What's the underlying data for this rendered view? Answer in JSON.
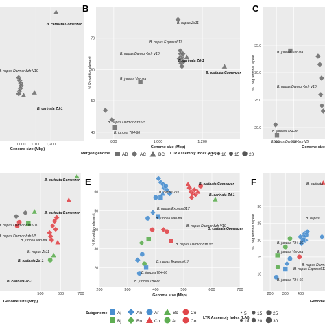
{
  "figure": {
    "legend_top": {
      "merged_title": "Merged genome",
      "merged_items": [
        "AB",
        "AC",
        "BC"
      ],
      "lai_title": "LTR Assembly Index (LAI)",
      "lai_items": [
        "5",
        "10",
        "15",
        "20"
      ]
    },
    "legend_bottom": {
      "subgenome_title": "Subgenome",
      "subgenome_items": [
        "Aj",
        "An",
        "Ar",
        "Bc",
        "Co",
        "Bj",
        "Bn",
        "Cn",
        "Ar",
        "Co"
      ],
      "lai_title": "LTR Assembly Index (LAI)",
      "lai_items": [
        "5",
        "10",
        "15",
        "20",
        "25",
        "30"
      ]
    },
    "colors": {
      "panel_bg": "#ebebeb",
      "grid": "#ffffff",
      "blue": "#4a8fcf",
      "green": "#5fae53",
      "red": "#e0464a",
      "grey": "#707070"
    }
  },
  "chart_data": [
    {
      "panel": "A",
      "type": "scatter",
      "xlabel": "Genome size (Mbp)",
      "ylabel": "",
      "xlim": [
        860,
        1420
      ],
      "ylim": [
        0,
        100
      ],
      "xticks": [
        "1,000",
        "1,100",
        "1,200"
      ],
      "xtick_values": [
        1000,
        1100,
        1200
      ],
      "labels": [
        "B. carinata Gomenzer",
        "B. napus Darmor-bzh V10",
        "B. carinata Zd-1"
      ],
      "points": [
        {
          "x": 1235,
          "y": 96,
          "shape": "triangle"
        },
        {
          "x": 985,
          "y": 47,
          "shape": "diamond"
        },
        {
          "x": 992,
          "y": 45,
          "shape": "diamond"
        },
        {
          "x": 998,
          "y": 43,
          "shape": "diamond"
        },
        {
          "x": 1002,
          "y": 41,
          "shape": "diamond"
        },
        {
          "x": 996,
          "y": 39,
          "shape": "diamond"
        },
        {
          "x": 990,
          "y": 37,
          "shape": "diamond"
        },
        {
          "x": 985,
          "y": 35,
          "shape": "diamond"
        },
        {
          "x": 1018,
          "y": 34,
          "shape": "triangle"
        },
        {
          "x": 1090,
          "y": 36,
          "shape": "triangle"
        }
      ]
    },
    {
      "panel": "B",
      "type": "scatter",
      "xlabel": "Genome size (Mbp)",
      "ylabel": "% Repetitive element",
      "xlim": [
        720,
        1370
      ],
      "ylim": [
        38,
        80
      ],
      "xticks": [
        "800",
        "1,000",
        "1,200"
      ],
      "xtick_values": [
        800,
        1000,
        1200
      ],
      "yticks": [
        "40",
        "50",
        "60",
        "70"
      ],
      "ytick_values": [
        40,
        50,
        60,
        70
      ],
      "labels": [
        "B. napus Zs11",
        "B. napus Express617",
        "B. napus Darmor-bzh V10",
        "B. carinata Zd-1",
        "B. carinata Gomenzer",
        "B. juncea Varuna",
        "B. napus Darmor-bzh V5",
        "B. juncea T84-66"
      ],
      "points": [
        {
          "x": 1300,
          "y": 61,
          "shape": "triangle"
        },
        {
          "x": 1090,
          "y": 76,
          "shape": "diamond"
        },
        {
          "x": 1100,
          "y": 66,
          "shape": "diamond"
        },
        {
          "x": 1102,
          "y": 65,
          "shape": "diamond"
        },
        {
          "x": 1106,
          "y": 64,
          "shape": "diamond"
        },
        {
          "x": 1110,
          "y": 63,
          "shape": "diamond"
        },
        {
          "x": 1104,
          "y": 62,
          "shape": "diamond"
        },
        {
          "x": 1096,
          "y": 63.5,
          "shape": "diamond"
        },
        {
          "x": 1112,
          "y": 65,
          "shape": "diamond"
        },
        {
          "x": 1108,
          "y": 61,
          "shape": "diamond"
        },
        {
          "x": 1115,
          "y": 62.5,
          "shape": "diamond"
        },
        {
          "x": 1130,
          "y": 64,
          "shape": "triangle"
        },
        {
          "x": 920,
          "y": 56,
          "shape": "square"
        },
        {
          "x": 762,
          "y": 47,
          "shape": "diamond"
        },
        {
          "x": 792,
          "y": 44,
          "shape": "diamond"
        },
        {
          "x": 806,
          "y": 41.5,
          "shape": "square"
        }
      ]
    },
    {
      "panel": "C",
      "type": "scatter",
      "xlabel": "Genome size",
      "ylabel": "% Long terminal repeat",
      "xlim": [
        720,
        1080
      ],
      "ylim": [
        18,
        42
      ],
      "xticks": [
        "800",
        "900"
      ],
      "xtick_values": [
        800,
        900
      ],
      "yticks": [
        "20.0",
        "25.0",
        "30.0",
        "35.0"
      ],
      "ytick_values": [
        20,
        25,
        30,
        35
      ],
      "labels": [
        "B. juncea Varuna",
        "B. napus Darmor-bzh V10",
        "B. juncea T84-66",
        "B. napus Darmor-bzh V5"
      ],
      "points": [
        {
          "x": 880,
          "y": 34,
          "shape": "square"
        },
        {
          "x": 1040,
          "y": 33,
          "shape": "diamond"
        },
        {
          "x": 1050,
          "y": 31.5,
          "shape": "diamond"
        },
        {
          "x": 1060,
          "y": 29,
          "shape": "diamond"
        },
        {
          "x": 1055,
          "y": 26,
          "shape": "diamond"
        },
        {
          "x": 1062,
          "y": 24,
          "shape": "diamond"
        },
        {
          "x": 1070,
          "y": 23,
          "shape": "diamond"
        },
        {
          "x": 795,
          "y": 20.5,
          "shape": "diamond"
        },
        {
          "x": 803,
          "y": 18.6,
          "shape": "square"
        }
      ]
    },
    {
      "panel": "D",
      "type": "scatter",
      "xlabel": "Genome size (Mbp)",
      "ylabel": "",
      "xlim": [
        300,
        700
      ],
      "ylim": [
        0,
        100
      ],
      "xticks": [
        "500",
        "600",
        "700"
      ],
      "xtick_values": [
        500,
        600,
        700
      ],
      "labels": [
        "B. carinata Gomenzer",
        "B. carinata Gomenzer",
        "B. napus Darmor-bzh V10",
        "B. napus Darmor-bzh V5",
        "B. juncea Varuna",
        "B. napus Zs11",
        "B. carinata Zd-1",
        "B. carinata Zd-1"
      ],
      "points": [
        {
          "x": 680,
          "y": 97,
          "shape": "triangle",
          "color": "green"
        },
        {
          "x": 640,
          "y": 77,
          "shape": "triangle",
          "color": "red"
        },
        {
          "x": 425,
          "y": 66,
          "shape": "diamond",
          "color": "grey"
        },
        {
          "x": 380,
          "y": 63,
          "shape": "diamond",
          "color": "grey"
        },
        {
          "x": 395,
          "y": 58,
          "shape": "circle",
          "color": "red"
        },
        {
          "x": 385,
          "y": 55,
          "shape": "circle",
          "color": "red"
        },
        {
          "x": 440,
          "y": 57,
          "shape": "square",
          "color": "green"
        },
        {
          "x": 470,
          "y": 67,
          "shape": "triangle",
          "color": "green"
        },
        {
          "x": 580,
          "y": 62,
          "shape": "diamond",
          "color": "red"
        },
        {
          "x": 570,
          "y": 59,
          "shape": "diamond",
          "color": "red"
        },
        {
          "x": 560,
          "y": 55,
          "shape": "diamond",
          "color": "red"
        },
        {
          "x": 575,
          "y": 52,
          "shape": "diamond",
          "color": "red"
        },
        {
          "x": 545,
          "y": 49,
          "shape": "diamond",
          "color": "red"
        },
        {
          "x": 550,
          "y": 46,
          "shape": "diamond",
          "color": "red"
        },
        {
          "x": 555,
          "y": 43,
          "shape": "diamond",
          "color": "red"
        },
        {
          "x": 585,
          "y": 41,
          "shape": "triangle",
          "color": "red"
        },
        {
          "x": 565,
          "y": 30,
          "shape": "triangle",
          "color": "green"
        },
        {
          "x": 548,
          "y": 26,
          "shape": "circle",
          "color": "green"
        }
      ]
    },
    {
      "panel": "E",
      "type": "scatter",
      "xlabel": "Genome size (Mbp)",
      "ylabel": "% Repetitive element",
      "xlim": [
        200,
        700
      ],
      "ylim": [
        10,
        70
      ],
      "xticks": [
        "200",
        "300",
        "400",
        "500",
        "600",
        "700"
      ],
      "xtick_values": [
        200,
        300,
        400,
        500,
        600,
        700
      ],
      "yticks": [
        "20",
        "30",
        "40",
        "50",
        "60"
      ],
      "ytick_values": [
        20,
        30,
        40,
        50,
        60
      ],
      "labels": [
        "B. napus Zs11",
        "B. carinata Gomenzer",
        "B. carinata Zd-1",
        "B. napus Express617",
        "B. juncea Varuna",
        "B. napus Darmor-bzh V10",
        "B. carinata Gomenzer",
        "B. napus Darmor-bzh V5",
        "B. napus Express617",
        "B. juncea T84-66",
        "B. juncea T84-66"
      ],
      "points": [
        {
          "x": 410,
          "y": 67,
          "shape": "diamond",
          "color": "blue"
        },
        {
          "x": 418,
          "y": 65,
          "shape": "diamond",
          "color": "blue"
        },
        {
          "x": 426,
          "y": 64,
          "shape": "diamond",
          "color": "blue"
        },
        {
          "x": 430,
          "y": 62,
          "shape": "diamond",
          "color": "blue"
        },
        {
          "x": 440,
          "y": 61,
          "shape": "diamond",
          "color": "blue"
        },
        {
          "x": 436,
          "y": 63,
          "shape": "circle",
          "color": "blue"
        },
        {
          "x": 450,
          "y": 59,
          "shape": "diamond",
          "color": "blue"
        },
        {
          "x": 425,
          "y": 59,
          "shape": "triangle",
          "color": "blue"
        },
        {
          "x": 418,
          "y": 57,
          "shape": "square",
          "color": "blue"
        },
        {
          "x": 400,
          "y": 57,
          "shape": "circle",
          "color": "blue"
        },
        {
          "x": 520,
          "y": 62,
          "shape": "diamond",
          "color": "red"
        },
        {
          "x": 526,
          "y": 60,
          "shape": "diamond",
          "color": "red"
        },
        {
          "x": 532,
          "y": 59,
          "shape": "diamond",
          "color": "red"
        },
        {
          "x": 538,
          "y": 61,
          "shape": "diamond",
          "color": "red"
        },
        {
          "x": 542,
          "y": 58.5,
          "shape": "diamond",
          "color": "red"
        },
        {
          "x": 528,
          "y": 57,
          "shape": "diamond",
          "color": "red"
        },
        {
          "x": 550,
          "y": 60,
          "shape": "triangle",
          "color": "red"
        },
        {
          "x": 515,
          "y": 64,
          "shape": "triangle",
          "color": "red"
        },
        {
          "x": 560,
          "y": 63,
          "shape": "circle",
          "color": "red"
        },
        {
          "x": 612,
          "y": 56,
          "shape": "triangle",
          "color": "green"
        },
        {
          "x": 390,
          "y": 49,
          "shape": "diamond",
          "color": "blue"
        },
        {
          "x": 372,
          "y": 46,
          "shape": "circle",
          "color": "blue"
        },
        {
          "x": 408,
          "y": 47,
          "shape": "square",
          "color": "blue"
        },
        {
          "x": 388,
          "y": 40,
          "shape": "circle",
          "color": "red"
        },
        {
          "x": 428,
          "y": 40,
          "shape": "diamond",
          "color": "red"
        },
        {
          "x": 440,
          "y": 39,
          "shape": "circle",
          "color": "red"
        },
        {
          "x": 455,
          "y": 34,
          "shape": "square",
          "color": "red"
        },
        {
          "x": 375,
          "y": 35,
          "shape": "square",
          "color": "green"
        },
        {
          "x": 350,
          "y": 33,
          "shape": "diamond",
          "color": "green"
        },
        {
          "x": 352,
          "y": 27,
          "shape": "circle",
          "color": "blue"
        },
        {
          "x": 336,
          "y": 24,
          "shape": "diamond",
          "color": "blue"
        },
        {
          "x": 360,
          "y": 22,
          "shape": "circle",
          "color": "green"
        },
        {
          "x": 366,
          "y": 20,
          "shape": "square",
          "color": "blue"
        },
        {
          "x": 342,
          "y": 17,
          "shape": "circle",
          "color": "blue"
        }
      ]
    },
    {
      "panel": "F",
      "type": "scatter",
      "xlabel": "Genome",
      "ylabel": "% Long terminal repeat",
      "xlim": [
        150,
        560
      ],
      "ylim": [
        5,
        40
      ],
      "xticks": [
        "200",
        "300",
        "400"
      ],
      "xtick_values": [
        200,
        300,
        400
      ],
      "yticks": [
        "10",
        "15",
        "20",
        "25",
        "30"
      ],
      "ytick_values": [
        10,
        15,
        20,
        25,
        30
      ],
      "labels": [
        "B. carinata",
        "B. napus",
        "B. juncea T84-66",
        "B. juncea Varuna",
        "B. napus Darmor-bzh",
        "B. napus Express617",
        "B. juncea T84-66"
      ],
      "points": [
        {
          "x": 548,
          "y": 37,
          "shape": "triangle",
          "color": "red"
        },
        {
          "x": 428,
          "y": 22,
          "shape": "diamond",
          "color": "blue"
        },
        {
          "x": 436,
          "y": 21.5,
          "shape": "circle",
          "color": "blue"
        },
        {
          "x": 444,
          "y": 22.5,
          "shape": "diamond",
          "color": "blue"
        },
        {
          "x": 420,
          "y": 21,
          "shape": "circle",
          "color": "blue"
        },
        {
          "x": 432,
          "y": 20,
          "shape": "diamond",
          "color": "blue"
        },
        {
          "x": 415,
          "y": 20,
          "shape": "square",
          "color": "blue"
        },
        {
          "x": 405,
          "y": 19,
          "shape": "diamond",
          "color": "blue"
        },
        {
          "x": 398,
          "y": 21,
          "shape": "diamond",
          "color": "blue"
        },
        {
          "x": 540,
          "y": 21,
          "shape": "diamond",
          "color": "blue"
        },
        {
          "x": 330,
          "y": 20.5,
          "shape": "circle",
          "color": "green"
        },
        {
          "x": 300,
          "y": 18,
          "shape": "circle",
          "color": "green"
        },
        {
          "x": 248,
          "y": 15.5,
          "shape": "square",
          "color": "green"
        },
        {
          "x": 330,
          "y": 14.5,
          "shape": "circle",
          "color": "blue"
        },
        {
          "x": 392,
          "y": 15,
          "shape": "circle",
          "color": "red"
        },
        {
          "x": 310,
          "y": 13,
          "shape": "diamond",
          "color": "blue"
        },
        {
          "x": 300,
          "y": 11.5,
          "shape": "square",
          "color": "blue"
        },
        {
          "x": 250,
          "y": 12,
          "shape": "circle",
          "color": "green"
        },
        {
          "x": 240,
          "y": 9,
          "shape": "circle",
          "color": "blue"
        }
      ]
    }
  ]
}
